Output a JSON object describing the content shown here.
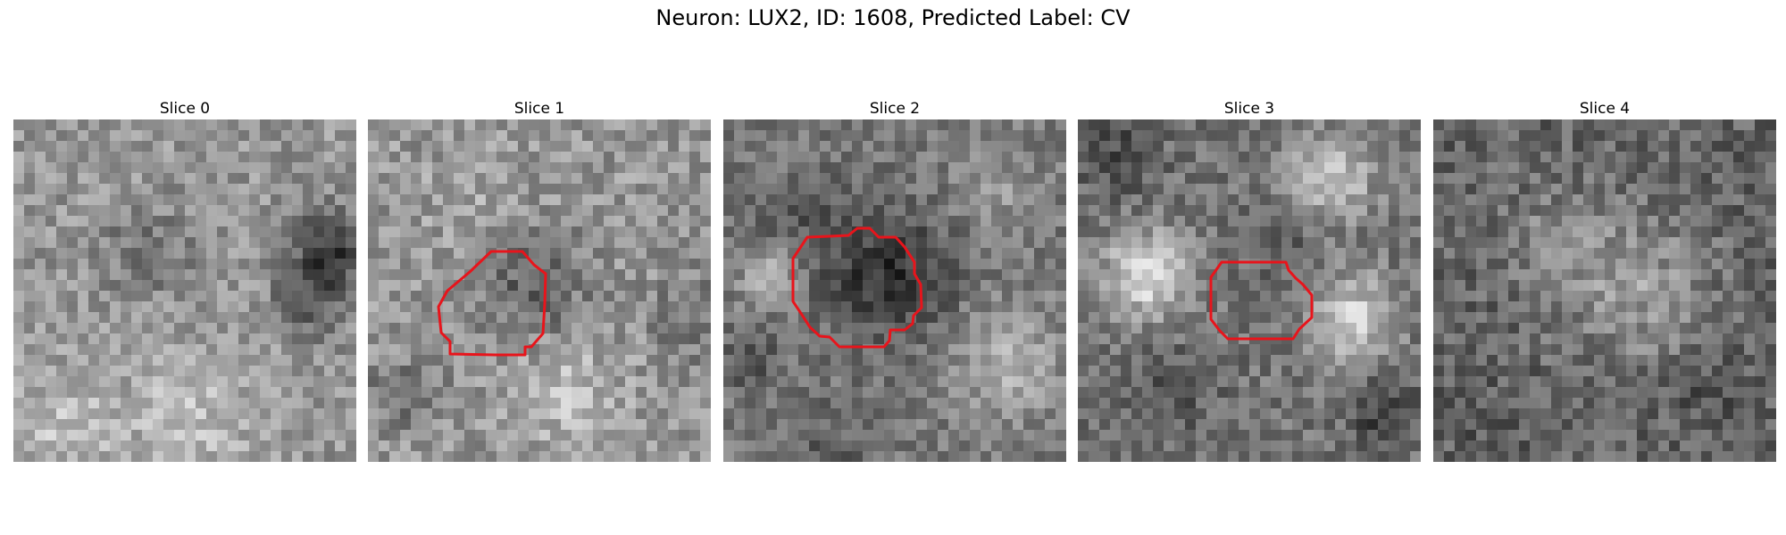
{
  "figure": {
    "title": "Neuron: LUX2, ID: 1608, Predicted Label: CV",
    "contour_color": "#e8141b"
  },
  "slices": [
    {
      "title": "Slice 0",
      "has_contour": false
    },
    {
      "title": "Slice 1",
      "has_contour": true
    },
    {
      "title": "Slice 2",
      "has_contour": true
    },
    {
      "title": "Slice 3",
      "has_contour": true
    },
    {
      "title": "Slice 4",
      "has_contour": false
    }
  ]
}
